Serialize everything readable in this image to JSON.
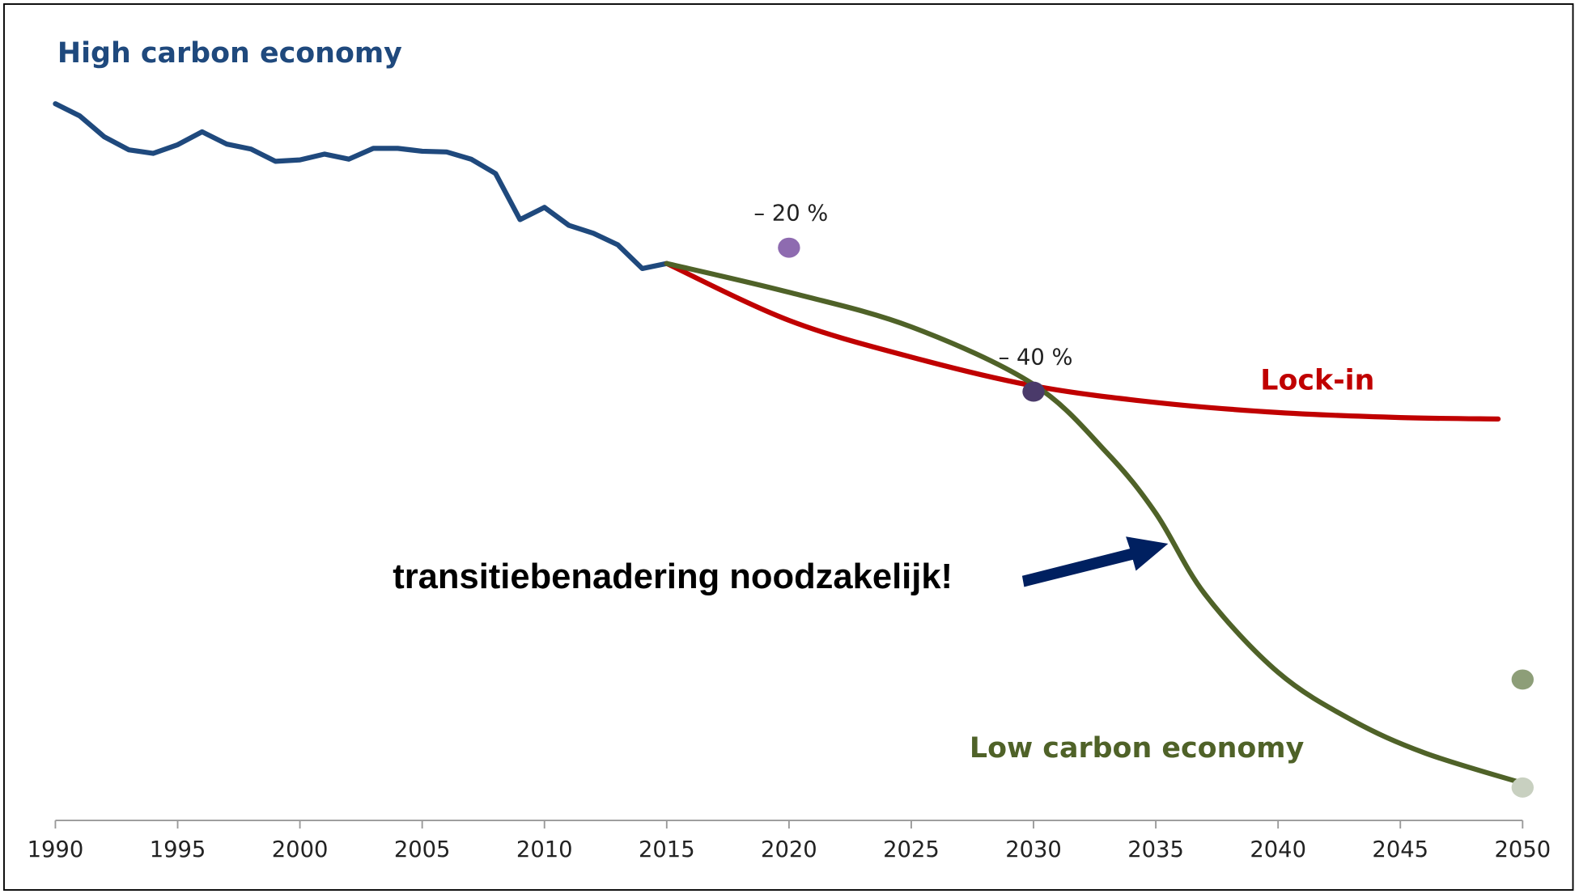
{
  "chart_data": {
    "type": "line",
    "xlim": [
      1990,
      2050
    ],
    "xticks": [
      1990,
      1995,
      2000,
      2005,
      2010,
      2015,
      2020,
      2025,
      2030,
      2035,
      2040,
      2045,
      2050
    ],
    "ylim": [
      0,
      100
    ],
    "series": [
      {
        "name": "High carbon economy",
        "color": "#1f497d",
        "smooth": false,
        "x": [
          1990,
          1991,
          1992,
          1993,
          1994,
          1995,
          1996,
          1997,
          1998,
          1999,
          2000,
          2001,
          2002,
          2003,
          2004,
          2005,
          2006,
          2007,
          2008,
          2009,
          2010,
          2011,
          2012,
          2013,
          2014,
          2015
        ],
        "values": [
          100,
          98.3,
          95.4,
          93.6,
          93.1,
          94.3,
          96.1,
          94.4,
          93.7,
          92.0,
          92.2,
          93.0,
          92.3,
          93.8,
          93.8,
          93.4,
          93.3,
          92.3,
          90.3,
          83.9,
          85.6,
          83.1,
          82.0,
          80.4,
          77.1,
          77.8
        ]
      },
      {
        "name": "Lock-in",
        "color": "#c00000",
        "smooth": true,
        "x": [
          2015,
          2020,
          2025,
          2030,
          2035,
          2040,
          2045,
          2049
        ],
        "values": [
          77.8,
          69.9,
          64.8,
          60.8,
          58.5,
          57.1,
          56.4,
          56.2
        ]
      },
      {
        "name": "Low carbon economy",
        "color": "#4f6228",
        "smooth": true,
        "x": [
          2015,
          2020,
          2025,
          2030,
          2033,
          2035,
          2037,
          2040,
          2043,
          2046,
          2050
        ],
        "values": [
          77.8,
          73.8,
          69.0,
          61.0,
          51.5,
          43.1,
          31.9,
          21.0,
          14.4,
          9.8,
          5.6
        ]
      }
    ],
    "points": [
      {
        "label": "– 20 %",
        "x": 2020,
        "value": 80,
        "color": "#8e6bb0"
      },
      {
        "label": "– 40 %",
        "x": 2030,
        "value": 60,
        "color": "#4a3a6a"
      },
      {
        "x": 2050,
        "value": 20,
        "color": "#8d9e78"
      },
      {
        "x": 2050,
        "value": 5,
        "color": "#c8d0c0"
      }
    ],
    "annotation": "transitiebenadering noodzakelijk!"
  }
}
